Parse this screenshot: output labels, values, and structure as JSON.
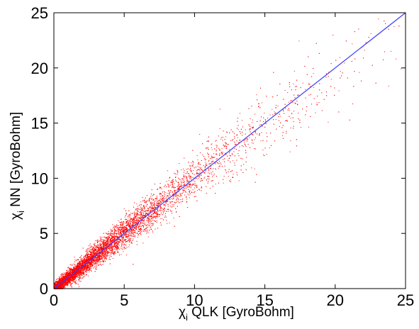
{
  "chart_data": {
    "type": "scatter",
    "title": "",
    "xlabel": {
      "symbol": "χ",
      "subscript": "i",
      "text": " QLK [GyroBohm]"
    },
    "ylabel": {
      "symbol": "χ",
      "subscript": "i",
      "text": " NN [GyroBohm]"
    },
    "xlim": [
      0,
      25
    ],
    "ylim": [
      0,
      25
    ],
    "xticks": [
      0,
      5,
      10,
      15,
      20,
      25
    ],
    "yticks": [
      0,
      5,
      10,
      15,
      20,
      25
    ],
    "grid": false,
    "series": [
      {
        "kind": "points",
        "color": "#ff0000",
        "approx_count": 15000,
        "density_profile": "dense near origin, thinning toward large values",
        "trend": "scatter around y = x, widening spread with x; upper-right points mostly below y = x",
        "sample_points": [
          [
            0.5,
            0.6
          ],
          [
            1.0,
            1.2
          ],
          [
            2.0,
            2.4
          ],
          [
            3.0,
            3.5
          ],
          [
            5.0,
            5.3
          ],
          [
            6.0,
            6.8
          ],
          [
            8.0,
            8.2
          ],
          [
            10.0,
            10.5
          ],
          [
            12.0,
            11.4
          ],
          [
            14.0,
            13.6
          ],
          [
            16.0,
            15.0
          ],
          [
            18.0,
            17.2
          ],
          [
            20.0,
            18.6
          ],
          [
            22.0,
            20.5
          ],
          [
            24.5,
            22.0
          ]
        ]
      },
      {
        "kind": "line",
        "color": "#3a3aff",
        "x": [
          0,
          25
        ],
        "y": [
          0,
          25
        ]
      }
    ]
  }
}
